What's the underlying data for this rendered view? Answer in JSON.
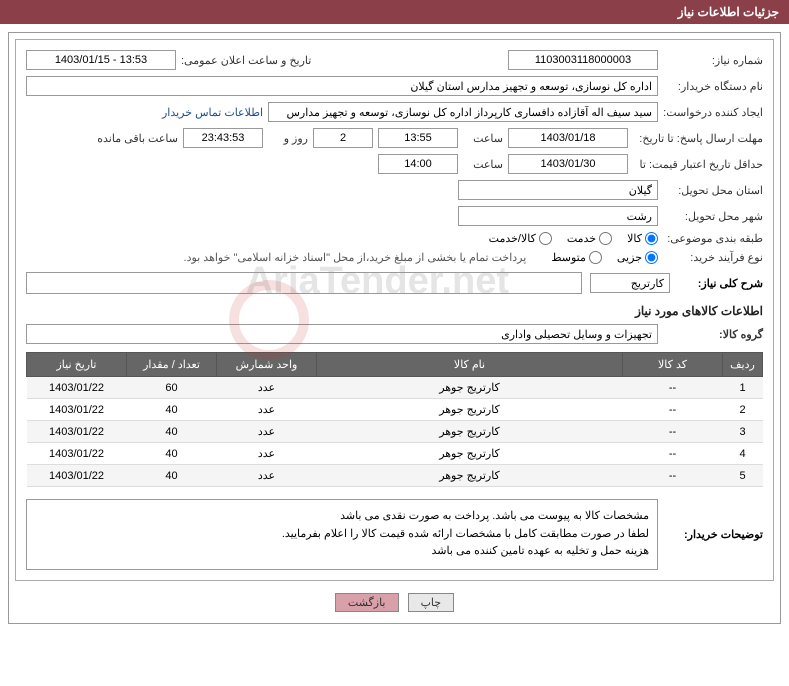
{
  "header": {
    "title": "جزئیات اطلاعات نیاز"
  },
  "form": {
    "need_number_label": "شماره نیاز:",
    "need_number": "1103003118000003",
    "announce_date_label": "تاریخ و ساعت اعلان عمومی:",
    "announce_date": "1403/01/15 - 13:53",
    "buyer_org_label": "نام دستگاه خریدار:",
    "buyer_org": "اداره کل نوسازی، توسعه و تجهیز مدارس استان گیلان",
    "requester_label": "ایجاد کننده درخواست:",
    "requester": "سید سیف اله آقازاده دافساری کارپرداز اداره کل نوسازی، توسعه و تجهیز مدارس",
    "buyer_contact_link": "اطلاعات تماس خریدار",
    "response_deadline_label": "مهلت ارسال پاسخ: تا تاریخ:",
    "response_date": "1403/01/18",
    "time_label": "ساعت",
    "response_time": "13:55",
    "remaining_days": "2",
    "day_and_label": "روز و",
    "remaining_time": "23:43:53",
    "remaining_label": "ساعت باقی مانده",
    "validity_label": "حداقل تاریخ اعتبار قیمت: تا",
    "validity_date": "1403/01/30",
    "validity_time": "14:00",
    "province_label": "استان محل تحویل:",
    "province": "گیلان",
    "city_label": "شهر محل تحویل:",
    "city": "رشت",
    "category_label": "طبقه بندی موضوعی:",
    "cat_goods": "کالا",
    "cat_service": "خدمت",
    "cat_both": "کالا/خدمت",
    "purchase_type_label": "نوع فرآیند خرید:",
    "type_partial": "جزیی",
    "type_medium": "متوسط",
    "payment_note": "پرداخت تمام یا بخشی از مبلغ خرید،از محل \"اسناد خزانه اسلامی\" خواهد بود."
  },
  "description": {
    "title_label": "شرح کلی نیاز:",
    "title_value": "کارتریج",
    "section_header": "اطلاعات کالاهای مورد نیاز",
    "group_label": "گروه کالا:",
    "group_value": "تجهیزات و وسایل تحصیلی واداری"
  },
  "table": {
    "headers": {
      "row": "ردیف",
      "code": "کد کالا",
      "name": "نام کالا",
      "unit": "واحد شمارش",
      "qty": "تعداد / مقدار",
      "date": "تاریخ نیاز"
    },
    "rows": [
      {
        "num": "1",
        "code": "--",
        "name": "کارتریج جوهر",
        "unit": "عدد",
        "qty": "60",
        "date": "1403/01/22"
      },
      {
        "num": "2",
        "code": "--",
        "name": "کارتریج جوهر",
        "unit": "عدد",
        "qty": "40",
        "date": "1403/01/22"
      },
      {
        "num": "3",
        "code": "--",
        "name": "کارتریج جوهر",
        "unit": "عدد",
        "qty": "40",
        "date": "1403/01/22"
      },
      {
        "num": "4",
        "code": "--",
        "name": "کارتریج جوهر",
        "unit": "عدد",
        "qty": "40",
        "date": "1403/01/22"
      },
      {
        "num": "5",
        "code": "--",
        "name": "کارتریج جوهر",
        "unit": "عدد",
        "qty": "40",
        "date": "1403/01/22"
      }
    ]
  },
  "buyer_notes": {
    "label": "توضیحات خریدار:",
    "line1": "مشخصات کالا به پیوست می باشد. پرداخت به صورت نقدی می باشد",
    "line2": "لطفا در صورت مطابقت کامل با مشخصات ارائه شده قیمت کالا را اعلام بفرمایید.",
    "line3": "هزینه حمل و تخلیه به عهده تامین کننده می باشد"
  },
  "buttons": {
    "print": "چاپ",
    "back": "بازگشت"
  },
  "watermark": "AriaTender.net"
}
